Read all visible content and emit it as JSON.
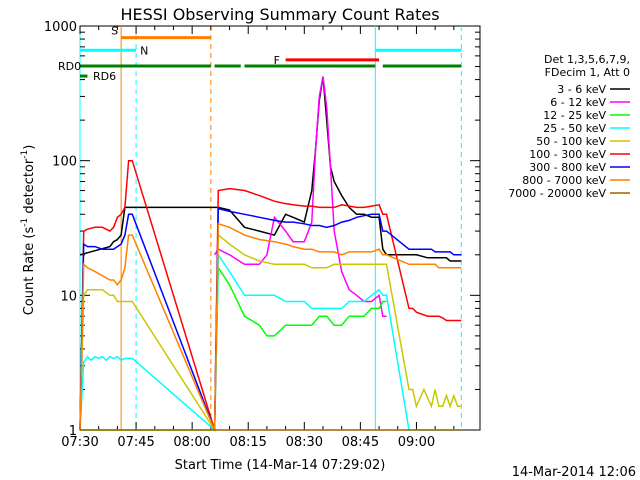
{
  "chart_data": {
    "type": "line",
    "title": "HESSI Observing Summary Count Rates",
    "xlabel": "Start Time (14-Mar-14 07:29:02)",
    "ylabel_main": "Count Rate (s",
    "ylabel_sup1": "-1",
    "ylabel_mid": " detector",
    "ylabel_sup2": "-1",
    "ylabel_end": ")",
    "x_range_min": [
      0,
      107
    ],
    "y_range": [
      1,
      1000
    ],
    "y_scale": "log",
    "x_ticks": [
      {
        "m": 0,
        "label": "07:30"
      },
      {
        "m": 15,
        "label": "07:45"
      },
      {
        "m": 30,
        "label": "08:00"
      },
      {
        "m": 45,
        "label": "08:15"
      },
      {
        "m": 60,
        "label": "08:30"
      },
      {
        "m": 75,
        "label": "08:45"
      },
      {
        "m": 90,
        "label": "09:00"
      }
    ],
    "y_ticks": [
      {
        "v": 1,
        "label": "1"
      },
      {
        "v": 10,
        "label": "10"
      },
      {
        "v": 100,
        "label": "100"
      },
      {
        "v": 1000,
        "label": "1000"
      }
    ],
    "legend_header": [
      "Det 1,3,5,6,7,9,",
      "FDecim 1, Att 0"
    ],
    "series": [
      {
        "name": "3 - 6 keV",
        "color": "#000000",
        "x": [
          0,
          8,
          9,
          10,
          11,
          12,
          14,
          35,
          36,
          37,
          40,
          44,
          48,
          52,
          55,
          57,
          60,
          62,
          63,
          64,
          65,
          66,
          67,
          68,
          70,
          72,
          74,
          76,
          78,
          80,
          81,
          82,
          88,
          89,
          90,
          93,
          94,
          95,
          96,
          97,
          98,
          99,
          100,
          101,
          102
        ],
        "y": [
          20,
          23,
          25,
          26,
          28,
          45,
          45,
          45,
          45,
          45,
          43,
          32,
          30,
          28,
          40,
          38,
          35,
          60,
          120,
          280,
          420,
          200,
          90,
          70,
          55,
          45,
          40,
          40,
          38,
          38,
          22,
          20,
          20,
          20,
          20,
          19,
          19,
          19,
          19,
          19,
          19,
          18,
          18,
          18,
          18
        ]
      },
      {
        "name": "6 - 12 keV",
        "color": "#ff00ff",
        "x": [
          36,
          37,
          40,
          44,
          48,
          50,
          52,
          55,
          57,
          60,
          62,
          63,
          64,
          65,
          66,
          67,
          68,
          70,
          72,
          74,
          76,
          78,
          80,
          81,
          82
        ],
        "y": [
          20,
          22,
          20,
          17,
          17,
          20,
          38,
          30,
          25,
          25,
          35,
          120,
          300,
          420,
          250,
          90,
          30,
          15,
          11,
          10,
          9,
          9,
          10,
          7,
          7
        ]
      },
      {
        "name": "12 - 25 keV",
        "color": "#00ff00",
        "x": [
          0,
          8,
          9,
          10,
          11,
          12,
          14,
          36,
          37,
          40,
          44,
          48,
          50,
          52,
          55,
          57,
          60,
          62,
          64,
          66,
          68,
          70,
          72,
          74,
          76,
          78,
          80,
          81,
          82
        ],
        "y": [
          1,
          1,
          1,
          1,
          1,
          1,
          1,
          1,
          16,
          12,
          7,
          6,
          5,
          5,
          6,
          6,
          6,
          6,
          7,
          7,
          6,
          6,
          7,
          7,
          7,
          8,
          8,
          9,
          9
        ]
      },
      {
        "name": "25 - 50 keV",
        "color": "#00ffff",
        "x": [
          0,
          1,
          2,
          3,
          4,
          5,
          6,
          7,
          8,
          9,
          10,
          11,
          12,
          14,
          36,
          37,
          40,
          44,
          48,
          52,
          55,
          57,
          60,
          62,
          64,
          66,
          68,
          70,
          72,
          74,
          76,
          78,
          80,
          81,
          82,
          88,
          89,
          90,
          93,
          94,
          95,
          96,
          97,
          98,
          99,
          100,
          101,
          102
        ],
        "y": [
          1,
          3.2,
          3.5,
          3.3,
          3.5,
          3.4,
          3.5,
          3.3,
          3.5,
          3.4,
          3.5,
          3.3,
          3.4,
          3.4,
          1,
          20,
          15,
          10,
          10,
          10,
          9,
          9,
          9,
          8,
          8,
          8,
          8,
          8,
          9,
          9,
          9,
          10,
          11,
          10,
          10,
          1,
          1,
          1,
          1,
          1,
          1,
          1,
          1,
          1,
          1,
          1,
          1,
          1
        ]
      },
      {
        "name": "50 - 100 keV",
        "color": "#c8c800",
        "x": [
          0,
          1,
          2,
          4,
          6,
          8,
          9,
          10,
          11,
          12,
          14,
          36,
          37,
          40,
          44,
          48,
          52,
          55,
          57,
          60,
          62,
          64,
          66,
          68,
          70,
          72,
          74,
          76,
          78,
          80,
          81,
          82,
          88,
          89,
          90,
          92,
          94,
          95,
          96,
          97,
          98,
          99,
          100,
          101,
          102
        ],
        "y": [
          1,
          10,
          11,
          11,
          11,
          10,
          10,
          9,
          9,
          9,
          9,
          1,
          28,
          24,
          20,
          18,
          17,
          17,
          17,
          17,
          16,
          16,
          16,
          17,
          17,
          17,
          17,
          17,
          17,
          17,
          17,
          17,
          2,
          2,
          1.5,
          2,
          1.5,
          2,
          1.5,
          1.5,
          1.8,
          1.5,
          1.8,
          1.5,
          1.5
        ]
      },
      {
        "name": "100 - 300 keV",
        "color": "#ff0000",
        "x": [
          0,
          1,
          2,
          4,
          6,
          8,
          9,
          10,
          11,
          12,
          13,
          14,
          36,
          37,
          40,
          44,
          48,
          52,
          55,
          57,
          60,
          62,
          64,
          66,
          68,
          70,
          72,
          74,
          76,
          78,
          80,
          81,
          82,
          88,
          89,
          90,
          93,
          94,
          95,
          96,
          97,
          98,
          99,
          100,
          101,
          102
        ],
        "y": [
          1,
          30,
          31,
          32,
          32,
          30,
          32,
          38,
          40,
          45,
          100,
          100,
          1,
          60,
          62,
          60,
          55,
          50,
          48,
          47,
          46,
          46,
          45,
          45,
          45,
          47,
          46,
          45,
          45,
          46,
          47,
          40,
          40,
          8,
          8,
          7.5,
          7,
          7,
          7,
          7,
          6.8,
          6.5,
          6.5,
          6.5,
          6.5,
          6.5
        ]
      },
      {
        "name": "300 - 800 keV",
        "color": "#0000ff",
        "x": [
          0,
          1,
          2,
          4,
          6,
          8,
          9,
          10,
          11,
          12,
          13,
          14,
          36,
          37,
          40,
          44,
          48,
          52,
          55,
          57,
          60,
          62,
          64,
          66,
          68,
          70,
          72,
          74,
          76,
          78,
          80,
          81,
          82,
          88,
          89,
          90,
          93,
          94,
          95,
          96,
          97,
          98,
          99,
          100,
          101,
          102
        ],
        "y": [
          1,
          24,
          23,
          23,
          22,
          22,
          22,
          23,
          24,
          28,
          40,
          40,
          1,
          44,
          42,
          40,
          38,
          36,
          35,
          35,
          34,
          33,
          33,
          32,
          33,
          35,
          36,
          38,
          39,
          40,
          40,
          30,
          30,
          22,
          22,
          22,
          22,
          22,
          21,
          21,
          21,
          21,
          21,
          20,
          20,
          20
        ]
      },
      {
        "name": "800 - 7000 keV",
        "color": "#ff8000",
        "x": [
          0,
          1,
          2,
          4,
          6,
          8,
          9,
          10,
          11,
          12,
          13,
          14,
          36,
          37,
          40,
          44,
          48,
          52,
          55,
          57,
          60,
          62,
          64,
          66,
          68,
          70,
          72,
          74,
          76,
          78,
          80,
          81,
          82,
          88,
          89,
          90,
          93,
          94,
          95,
          96,
          97,
          98,
          99,
          100,
          101,
          102
        ],
        "y": [
          1,
          17,
          16,
          15,
          14,
          13,
          13,
          12,
          13,
          16,
          28,
          28,
          1,
          34,
          32,
          28,
          26,
          25,
          24,
          23,
          22,
          22,
          21,
          21,
          21,
          20,
          21,
          21,
          21,
          21,
          22,
          20,
          20,
          17,
          17,
          17,
          17,
          17,
          17,
          16,
          16,
          16,
          16,
          16,
          16,
          16
        ]
      },
      {
        "name": "7000 - 20000 keV",
        "color": "#a06000",
        "x": [
          0,
          8,
          9,
          10,
          11,
          12,
          13,
          14,
          102
        ],
        "y": [
          1,
          1,
          1,
          1,
          1,
          1,
          1,
          1,
          1
        ]
      }
    ],
    "segments": {
      "S": {
        "label": "S",
        "color": "#ff8000",
        "x0": 11,
        "x1": 35,
        "y": 820
      },
      "N": {
        "label": "N",
        "color": "#00ffff",
        "x0": 0,
        "x1": 15,
        "y": 660
      },
      "N2": {
        "label": "",
        "color": "#00ffff",
        "x0": 79,
        "x1": 102,
        "y": 660
      },
      "F": {
        "label": "F",
        "color": "#ff0000",
        "x0": 55,
        "x1": 80,
        "y": 560
      },
      "RD0": {
        "label": "RD0",
        "color": "#008000",
        "x0": 0,
        "x1": 102,
        "y": 505
      },
      "RD6": {
        "label": "RD6",
        "color": "#008000",
        "x0": 0,
        "x1": 102,
        "y": 425
      }
    },
    "vlines": [
      {
        "x": 0,
        "color": "#00ffff",
        "style": "solid"
      },
      {
        "x": 11,
        "color": "#ff8000",
        "style": "solid"
      },
      {
        "x": 15,
        "color": "#00ffff",
        "style": "dashed"
      },
      {
        "x": 35,
        "color": "#ff8000",
        "style": "dashed"
      },
      {
        "x": 79,
        "color": "#00ffff",
        "style": "solid"
      },
      {
        "x": 102,
        "color": "#00ffff",
        "style": "dashed"
      }
    ]
  },
  "footer_stamp": "14-Mar-2014 12:06"
}
